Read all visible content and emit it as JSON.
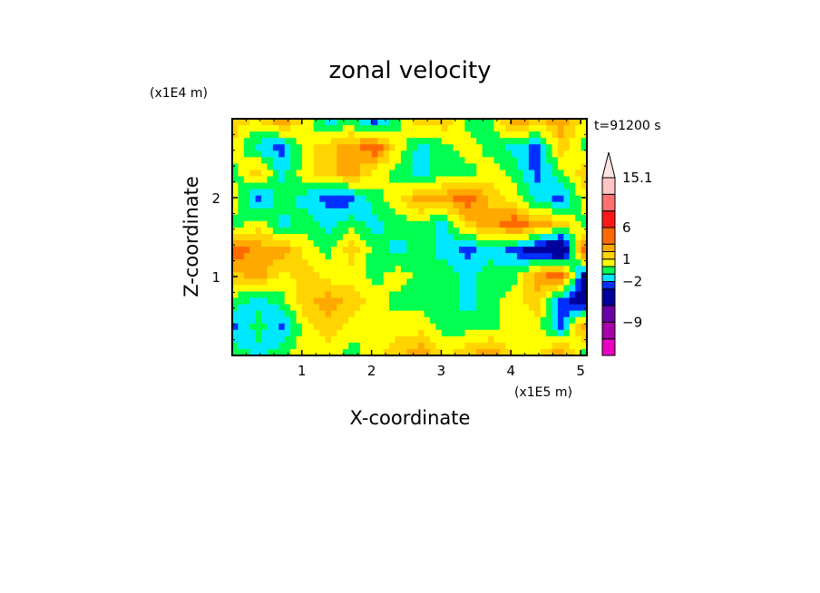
{
  "chart_data": {
    "type": "heatmap",
    "title": "zonal velocity",
    "xlabel": "X-coordinate",
    "ylabel": "Z-coordinate",
    "x_unit_label": "(x1E5 m)",
    "y_unit_label": "(x1E4 m)",
    "time_label": "t=91200 s",
    "xlim": [
      0,
      5.09
    ],
    "ylim": [
      0,
      3.0
    ],
    "x_ticks": [
      "1",
      "2",
      "3",
      "4",
      "5"
    ],
    "x_tick_values": [
      1,
      2,
      3,
      4,
      5
    ],
    "y_ticks": [
      "1",
      "2"
    ],
    "y_tick_values": [
      1,
      2
    ],
    "colorbar": {
      "levels": [
        -15,
        -12,
        -9,
        -6,
        -3,
        -2,
        -1,
        0,
        1,
        2,
        3,
        6,
        9,
        12,
        15.1
      ],
      "colors": [
        "#e800c0",
        "#a800a8",
        "#6c00a8",
        "#00009c",
        "#0030ff",
        "#00e8ff",
        "#00ff50",
        "#ffff00",
        "#ffd400",
        "#ffa800",
        "#ff6a00",
        "#ff1818",
        "#ff7070",
        "#ffc4c4"
      ],
      "extend_color": "#ffe4e4",
      "tick_labels": [
        "15.1",
        "6",
        "1",
        "−2",
        "−9"
      ],
      "tick_values": [
        15.1,
        6,
        1,
        -2,
        -9
      ]
    },
    "grid_note_rows_top_to_bottom": true,
    "values": [
      [
        1.5,
        0.5,
        2.5,
        0.5,
        -1.5,
        -0.5,
        -2.5,
        -0.5,
        1.5,
        1.5,
        -0.5,
        -0.5,
        2.5,
        1.5,
        2.5,
        0.5
      ],
      [
        0.5,
        -1.5,
        -2.5,
        0.5,
        1.5,
        2.5,
        4,
        0.5,
        -1.5,
        -0.5,
        0.5,
        -0.5,
        -1.5,
        -2.5,
        1.5,
        -0.5
      ],
      [
        -0.5,
        1.5,
        -1.5,
        0.5,
        1.5,
        2.5,
        0.5,
        -0.5,
        -1.5,
        -0.5,
        -0.5,
        0.5,
        -0.5,
        -2.5,
        -0.5,
        1.5
      ],
      [
        0.5,
        -2.5,
        -0.5,
        -1.5,
        -2.5,
        -2.5,
        -0.5,
        0.5,
        2.5,
        2.5,
        4,
        1.5,
        0.5,
        -1.5,
        -2.5,
        0.5
      ],
      [
        -0.5,
        0.5,
        -1.5,
        -0.5,
        -1.5,
        -0.5,
        -1.5,
        -0.5,
        -0.5,
        -1.5,
        1.5,
        2.5,
        4,
        2.5,
        1.5,
        -0.5
      ],
      [
        4,
        2.5,
        2.5,
        0.5,
        -0.5,
        1.5,
        -0.5,
        -1.5,
        -0.5,
        -1.5,
        -2.5,
        -1.5,
        -2.5,
        -4,
        -6,
        4
      ],
      [
        1.5,
        2.5,
        0.5,
        1.5,
        0.5,
        0.5,
        -0.5,
        0.5,
        -0.5,
        -0.5,
        -1.5,
        -0.5,
        -0.5,
        2.5,
        4,
        -4
      ],
      [
        -0.5,
        -1.5,
        -0.5,
        1.5,
        2.5,
        1.5,
        0.5,
        -0.5,
        -0.5,
        -0.5,
        -1.5,
        -0.5,
        0.5,
        1.5,
        -2.5,
        -4
      ],
      [
        -2.5,
        -0.5,
        -2.5,
        0.5,
        1.5,
        0.5,
        0.5,
        0.5,
        0.5,
        -0.5,
        -0.5,
        -0.5,
        0.5,
        0.5,
        -2.5,
        2.5
      ],
      [
        -0.5,
        -1.5,
        -0.5,
        0.5,
        0.5,
        -0.5,
        0.5,
        1.5,
        2.5,
        0.5,
        1.5,
        2.5,
        0.5,
        0.5,
        2.5,
        -0.5
      ]
    ]
  }
}
